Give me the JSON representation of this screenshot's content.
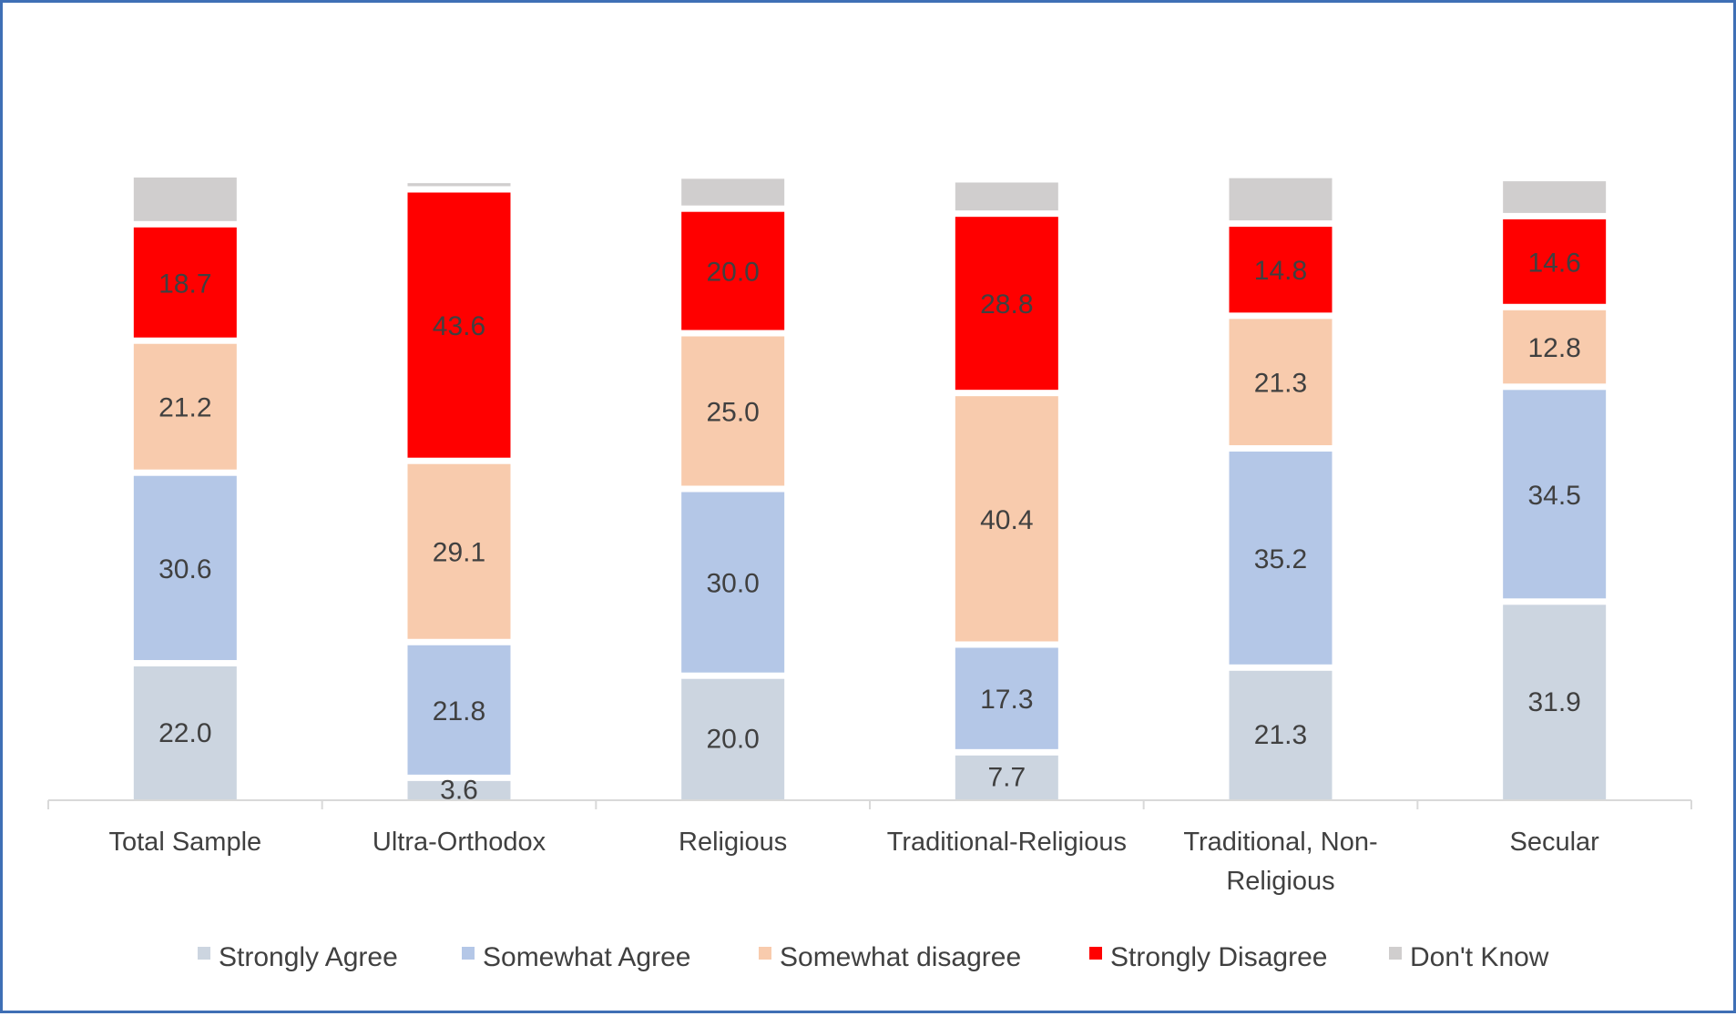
{
  "chart_data": {
    "type": "stacked-bar",
    "title": "",
    "xlabel": "",
    "ylabel": "",
    "ylim": [
      0,
      100
    ],
    "grid": false,
    "legend_position": "bottom",
    "categories": [
      "Total Sample",
      "Ultra-Orthodox",
      "Religious",
      "Traditional-Religious",
      "Traditional, Non-Religious",
      "Secular"
    ],
    "series": [
      {
        "name": "Strongly Agree",
        "color": "#ccd5e0",
        "values": [
          22.0,
          3.6,
          20.0,
          7.7,
          21.3,
          31.9
        ],
        "labels": [
          "22.0",
          "3.6",
          "20.0",
          "7.7",
          "21.3",
          "31.9"
        ]
      },
      {
        "name": "Somewhat Agree",
        "color": "#b4c7e7",
        "values": [
          30.6,
          21.8,
          30.0,
          17.3,
          35.2,
          34.5
        ],
        "labels": [
          "30.6",
          "21.8",
          "30.0",
          "17.3",
          "35.2",
          "34.5"
        ]
      },
      {
        "name": "Somewhat disagree",
        "color": "#f8cbad",
        "values": [
          21.2,
          29.1,
          25.0,
          40.4,
          21.3,
          12.8
        ],
        "labels": [
          "21.2",
          "29.1",
          "25.0",
          "40.4",
          "21.3",
          "12.8"
        ]
      },
      {
        "name": "Strongly Disagree",
        "color": "#ff0000",
        "values": [
          18.7,
          43.6,
          20.0,
          28.8,
          14.8,
          14.6
        ],
        "labels": [
          "18.7",
          "43.6",
          "20.0",
          "28.8",
          "14.8",
          "14.6"
        ]
      },
      {
        "name": "Don't Know",
        "color": "#d0cece",
        "values": [
          7.5,
          1.0,
          4.8,
          5.0,
          7.3,
          5.6
        ],
        "labels": [
          "",
          "",
          "",
          "",
          "",
          ""
        ]
      }
    ]
  }
}
